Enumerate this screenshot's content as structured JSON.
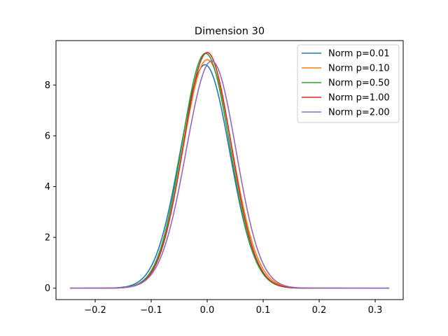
{
  "chart_data": {
    "type": "line",
    "title": "Dimension 30",
    "xlabel": "",
    "ylabel": "",
    "xlim": [
      -0.27,
      0.35
    ],
    "ylim": [
      -0.45,
      9.75
    ],
    "xticks": [
      -0.2,
      -0.1,
      0.0,
      0.1,
      0.2,
      0.3
    ],
    "xtick_labels": [
      "−0.2",
      "−0.1",
      "0.0",
      "0.1",
      "0.2",
      "0.3"
    ],
    "yticks": [
      0,
      2,
      4,
      6,
      8
    ],
    "ytick_labels": [
      "0",
      "2",
      "4",
      "6",
      "8"
    ],
    "grid": false,
    "legend_position": "top-right",
    "series": [
      {
        "name": "Norm p=0.01",
        "color": "#1f77b4",
        "peak_x": -0.004,
        "peak_y": 8.8,
        "sigma_left": 0.0445,
        "sigma_right": 0.0445,
        "x_min": -0.245,
        "x_max": 0.325
      },
      {
        "name": "Norm p=0.10",
        "color": "#ff7f0e",
        "peak_x": 0.0,
        "peak_y": 9.0,
        "sigma_left": 0.0435,
        "sigma_right": 0.0448,
        "x_min": -0.245,
        "x_max": 0.255
      },
      {
        "name": "Norm p=0.50",
        "color": "#2ca02c",
        "peak_x": -0.003,
        "peak_y": 9.25,
        "sigma_left": 0.0425,
        "sigma_right": 0.0435,
        "x_min": -0.22,
        "x_max": 0.285
      },
      {
        "name": "Norm p=1.00",
        "color": "#d62728",
        "peak_x": 0.0,
        "peak_y": 9.28,
        "sigma_left": 0.0428,
        "sigma_right": 0.043,
        "x_min": -0.22,
        "x_max": 0.24
      },
      {
        "name": "Norm p=2.00",
        "color": "#9467bd",
        "peak_x": 0.008,
        "peak_y": 8.95,
        "sigma_left": 0.0455,
        "sigma_right": 0.0435,
        "x_min": -0.245,
        "x_max": 0.325
      }
    ]
  }
}
